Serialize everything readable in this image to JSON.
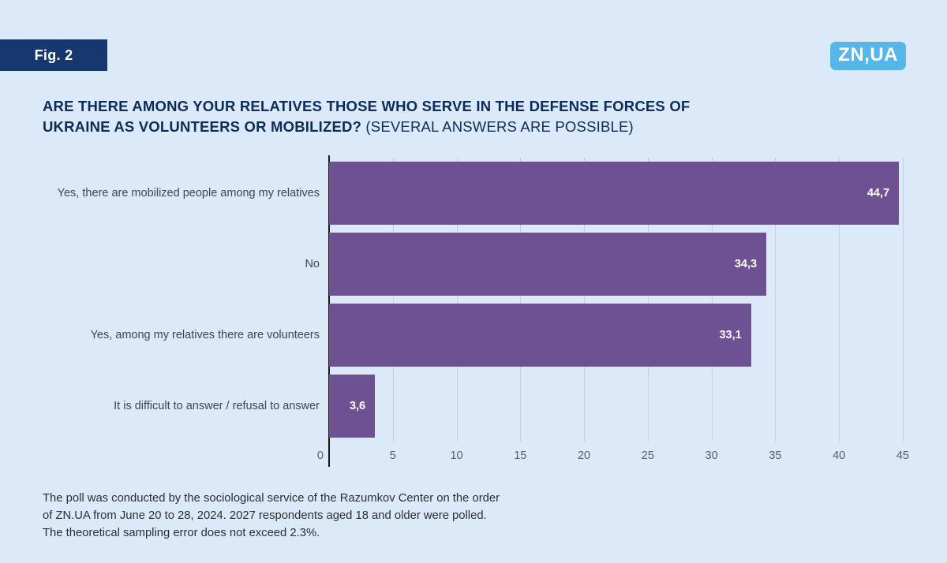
{
  "figure_label": "Fig. 2",
  "logo": {
    "text": "ZN,UA"
  },
  "title": {
    "bold": "ARE THERE AMONG YOUR RELATIVES THOSE WHO SERVE IN THE DEFENSE FORCES OF UKRAINE AS VOLUNTEERS OR MOBILIZED?",
    "regular": "(SEVERAL ANSWERS ARE POSSIBLE)"
  },
  "chart_data": {
    "type": "bar",
    "orientation": "horizontal",
    "title": "Are there among your relatives those who serve in the Defense Forces of Ukraine as volunteers or mobilized? (several answers are possible)",
    "categories": [
      "Yes, there are mobilized people among my relatives",
      "No",
      "Yes, among my relatives there are volunteers",
      "It is difficult to answer / refusal to answer"
    ],
    "values": [
      44.7,
      34.3,
      33.1,
      3.6
    ],
    "value_labels": [
      "44,7",
      "34,3",
      "33,1",
      "3,6"
    ],
    "xlim": [
      0,
      45
    ],
    "xticks": [
      0,
      5,
      10,
      15,
      20,
      25,
      30,
      35,
      40,
      45
    ],
    "grid": true,
    "legend": false,
    "bar_color": "#6e5192"
  },
  "colors": {
    "background": "#dce9f8",
    "badge_navy": "#17386e",
    "title_navy": "#0d2c55",
    "logo_blue": "#56b6e8",
    "bar_purple": "#6e5192"
  },
  "footer": {
    "text": "The poll was conducted by the sociological service of the Razumkov Center on the order of ZN.UA from June 20 to 28, 2024. 2027 respondents aged 18 and older were polled. The theoretical sampling error does not exceed 2.3%."
  }
}
